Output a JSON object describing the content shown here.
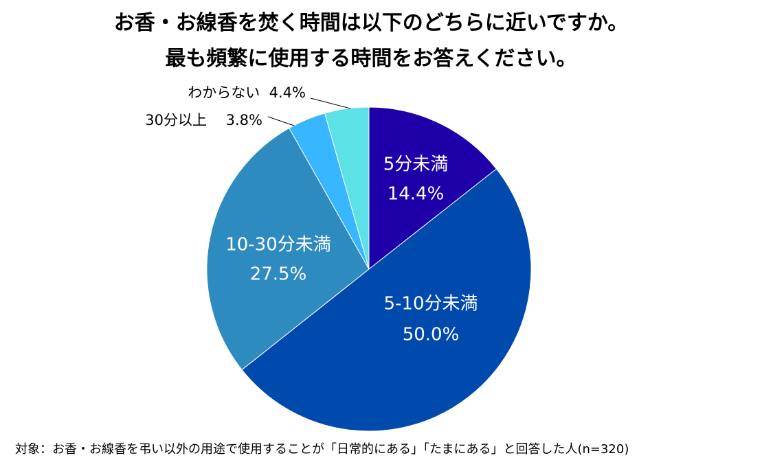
{
  "chart_data": {
    "type": "pie",
    "title_lines": [
      "お香・お線香を焚く時間は以下のどちらに近いですか。",
      "最も頻繁に使用する時間をお答えください。"
    ],
    "slices": [
      {
        "label": "5分未満",
        "value": 14.4,
        "value_label": "14.4%",
        "color": "#1f00a8",
        "label_position": "inside"
      },
      {
        "label": "5-10分未満",
        "value": 50.0,
        "value_label": "50.0%",
        "color": "#004aad",
        "label_position": "inside"
      },
      {
        "label": "10-30分未満",
        "value": 27.5,
        "value_label": "27.5%",
        "color": "#2e8bc0",
        "label_position": "inside"
      },
      {
        "label": "30分以上",
        "value": 3.8,
        "value_label": "3.8%",
        "color": "#38b6ff",
        "label_position": "outside"
      },
      {
        "label": "わからない",
        "value": 4.4,
        "value_label": "4.4%",
        "color": "#5ce1e6",
        "label_position": "outside"
      }
    ],
    "start": "top",
    "direction": "clockwise",
    "footnote": "対象：お香・お線香を弔い以外の用途で使用することが「日常的にある」「たまにある」と回答した人(n=320)"
  }
}
